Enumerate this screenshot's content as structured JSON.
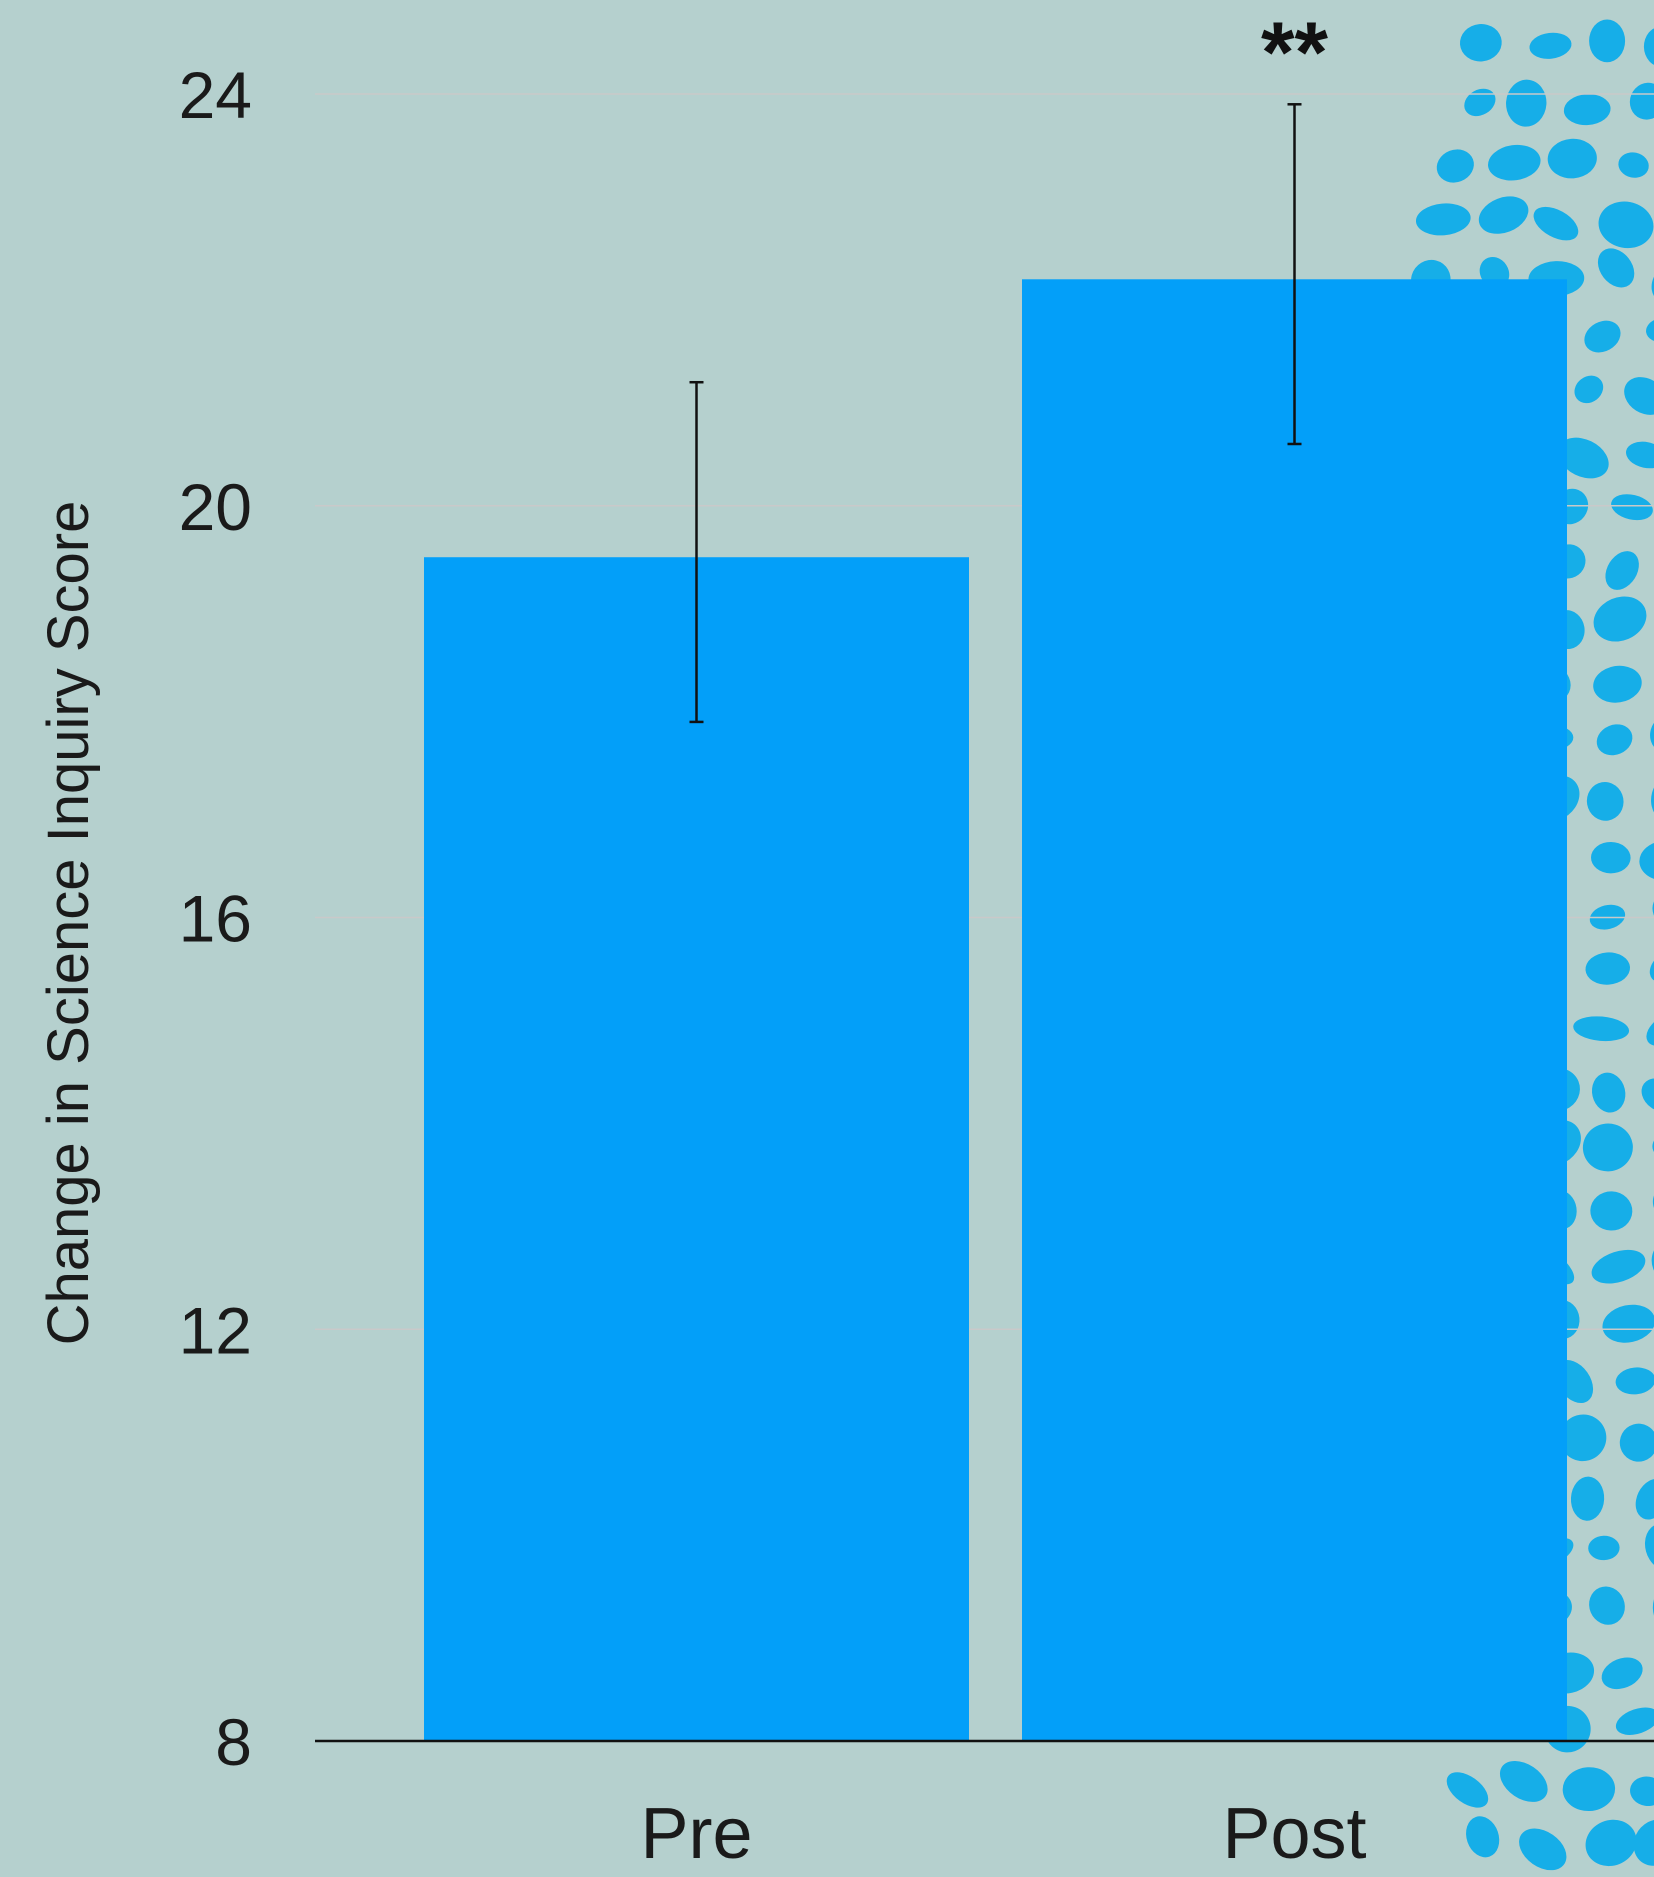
{
  "colors": {
    "background": "#b5d0ce",
    "bar": "#039ff9",
    "pattern": "#16aee8",
    "grid": "#c9c9c9",
    "axis": "#111111"
  },
  "chart_data": {
    "type": "bar",
    "categories": [
      "Pre",
      "Post"
    ],
    "values": [
      19.5,
      22.2
    ],
    "error_bars": [
      {
        "low": 17.9,
        "high": 21.2
      },
      {
        "low": 20.6,
        "high": 23.9
      }
    ],
    "ylim": [
      8,
      24
    ],
    "yticks": [
      "8",
      "12",
      "16",
      "20",
      "24"
    ],
    "ylabel": "Change in Science Inquiry Score",
    "xlabel": "",
    "title": "",
    "annotations": [
      {
        "category": "Post",
        "text": "**"
      }
    ],
    "grid": true,
    "legend": "none"
  }
}
